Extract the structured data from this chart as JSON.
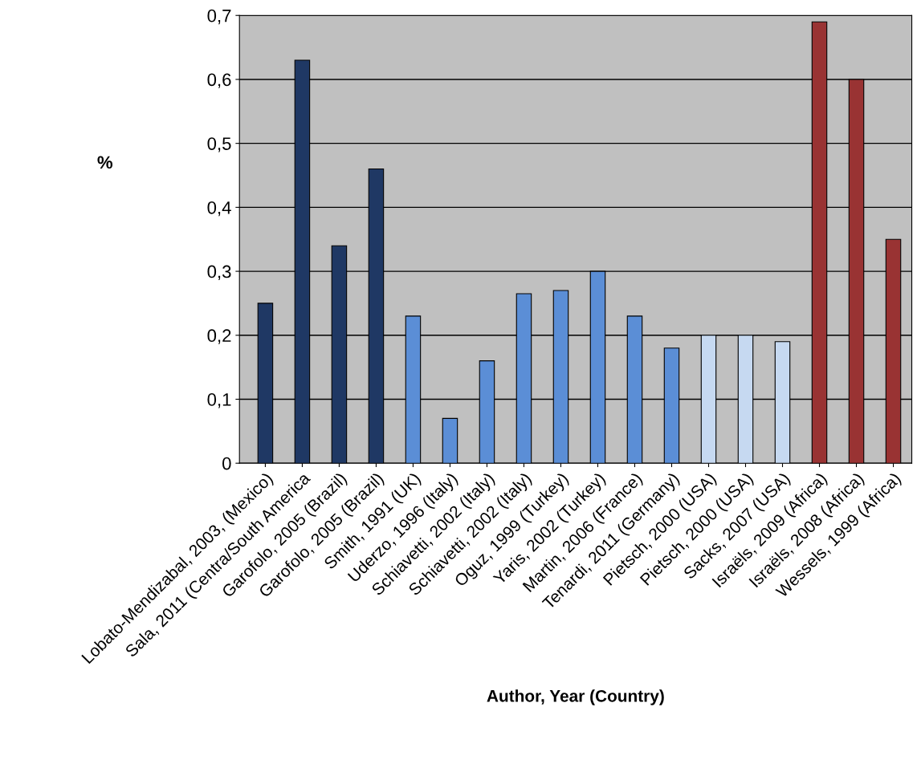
{
  "chart_data": {
    "type": "bar",
    "xlabel": "Author, Year (Country)",
    "ylabel": "%",
    "categories": [
      "Lobato-Mendizabal, 2003, (Mexico)",
      "Sala, 2011 (Centra/South America",
      "Garofolo, 2005 (Brazil)",
      "Garofolo, 2005 (Brazil)",
      "Smith, 1991 (UK)",
      "Uderzo, 1996 (Italy)",
      "Schiavetti, 2002 (Italy)",
      "Schiavetti, 2002 (Italy)",
      "Oguz, 1999 (Turkey)",
      "Yaris, 2002 (Turkey)",
      "Martin, 2006 (France)",
      "Tenardi, 2011 (Germany)",
      "Pietsch, 2000 (USA)",
      "Pietsch, 2000 (USA)",
      "Sacks, 2007 (USA)",
      "Israëls, 2009 (Africa)",
      "Israëls, 2008 (Africa)",
      "Wessels, 1999 (Africa)"
    ],
    "values": [
      0.25,
      0.63,
      0.34,
      0.46,
      0.23,
      0.07,
      0.16,
      0.265,
      0.27,
      0.3,
      0.23,
      0.18,
      0.2,
      0.2,
      0.19,
      0.69,
      0.6,
      0.35
    ],
    "colors": [
      "#1f3864",
      "#1f3864",
      "#1f3864",
      "#1f3864",
      "#5b8ed6",
      "#5b8ed6",
      "#5b8ed6",
      "#5b8ed6",
      "#5b8ed6",
      "#5b8ed6",
      "#5b8ed6",
      "#5b8ed6",
      "#c6d9f1",
      "#c6d9f1",
      "#c6d9f1",
      "#993333",
      "#993333",
      "#993333"
    ],
    "ylim": [
      0,
      0.7
    ],
    "yticks": [
      {
        "value": 0,
        "label": "0"
      },
      {
        "value": 0.1,
        "label": "0,1"
      },
      {
        "value": 0.2,
        "label": "0,2"
      },
      {
        "value": 0.3,
        "label": "0,3"
      },
      {
        "value": 0.4,
        "label": "0,4"
      },
      {
        "value": 0.5,
        "label": "0,5"
      },
      {
        "value": 0.6,
        "label": "0,6"
      },
      {
        "value": 0.7,
        "label": "0,7"
      }
    ],
    "grid": "y",
    "legend": false
  }
}
